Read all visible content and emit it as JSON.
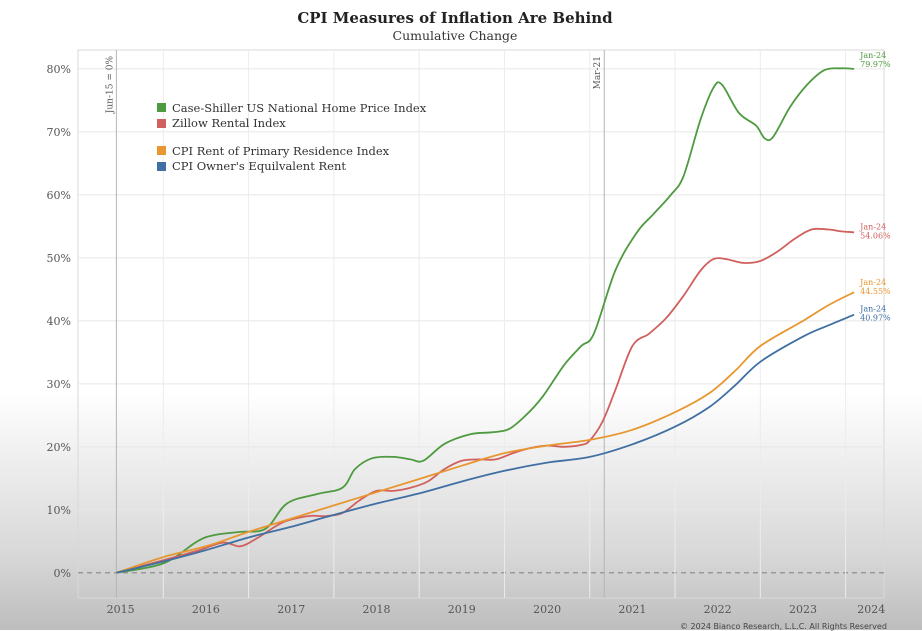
{
  "title": "CPI Measures of Inflation Are Behind",
  "subtitle": "Cumulative Change",
  "credit": "© 2024 Bianco Research, L.L.C. All Rights Reserved",
  "chart_data": {
    "type": "line",
    "title": "CPI Measures of Inflation Are Behind",
    "subtitle": "Cumulative Change",
    "xlabel": "",
    "ylabel": "",
    "x_ticks": [
      "2015",
      "2016",
      "2017",
      "2018",
      "2019",
      "2020",
      "2021",
      "2022",
      "2023",
      "2024"
    ],
    "y_ticks": [
      "0%",
      "10%",
      "20%",
      "30%",
      "40%",
      "50%",
      "60%",
      "70%",
      "80%"
    ],
    "xlim": [
      2015.0,
      2024.45
    ],
    "ylim": [
      -4,
      83
    ],
    "grid": "horizontal and vertical, light",
    "legend_position": "top-left",
    "reference_lines": [
      {
        "x": 2015.45,
        "label": "Jun-15 = 0%"
      },
      {
        "x": 2021.17,
        "label": "Mar-21"
      }
    ],
    "series": [
      {
        "name": "Case-Shiller US National Home Price Index",
        "color": "#4e9a3f",
        "end_label": "Jan-24",
        "end_value_label": "79.97%",
        "points": [
          [
            2015.45,
            0
          ],
          [
            2016.0,
            1.5
          ],
          [
            2016.4,
            5
          ],
          [
            2016.6,
            6
          ],
          [
            2016.9,
            6.5
          ],
          [
            2017.2,
            7
          ],
          [
            2017.45,
            11
          ],
          [
            2017.8,
            12.5
          ],
          [
            2018.1,
            13.5
          ],
          [
            2018.25,
            16.5
          ],
          [
            2018.45,
            18.2
          ],
          [
            2018.7,
            18.4
          ],
          [
            2018.9,
            18
          ],
          [
            2019.05,
            17.8
          ],
          [
            2019.3,
            20.5
          ],
          [
            2019.6,
            22
          ],
          [
            2019.85,
            22.3
          ],
          [
            2020.05,
            22.8
          ],
          [
            2020.25,
            25
          ],
          [
            2020.45,
            28
          ],
          [
            2020.7,
            33
          ],
          [
            2020.9,
            36
          ],
          [
            2021.05,
            38
          ],
          [
            2021.3,
            48
          ],
          [
            2021.55,
            54
          ],
          [
            2021.75,
            57
          ],
          [
            2021.95,
            60
          ],
          [
            2022.1,
            63
          ],
          [
            2022.3,
            72
          ],
          [
            2022.45,
            77
          ],
          [
            2022.55,
            77.5
          ],
          [
            2022.75,
            73
          ],
          [
            2022.95,
            71
          ],
          [
            2023.05,
            69
          ],
          [
            2023.15,
            69.2
          ],
          [
            2023.35,
            74
          ],
          [
            2023.55,
            77.5
          ],
          [
            2023.75,
            79.8
          ],
          [
            2023.95,
            80.1
          ],
          [
            2024.1,
            80.0
          ]
        ]
      },
      {
        "name": "Zillow Rental Index",
        "color": "#d0605e",
        "end_label": "Jan-24",
        "end_value_label": "54.06%",
        "points": [
          [
            2015.45,
            0
          ],
          [
            2016.0,
            2
          ],
          [
            2016.4,
            3.5
          ],
          [
            2016.7,
            4.8
          ],
          [
            2016.9,
            4.2
          ],
          [
            2017.1,
            5.5
          ],
          [
            2017.4,
            8
          ],
          [
            2017.7,
            9
          ],
          [
            2017.9,
            9
          ],
          [
            2018.1,
            9.5
          ],
          [
            2018.3,
            11.5
          ],
          [
            2018.5,
            13
          ],
          [
            2018.7,
            13
          ],
          [
            2018.9,
            13.5
          ],
          [
            2019.1,
            14.5
          ],
          [
            2019.3,
            16.5
          ],
          [
            2019.5,
            17.8
          ],
          [
            2019.7,
            18
          ],
          [
            2019.9,
            18
          ],
          [
            2020.1,
            19
          ],
          [
            2020.3,
            19.8
          ],
          [
            2020.5,
            20.2
          ],
          [
            2020.7,
            20
          ],
          [
            2020.9,
            20.3
          ],
          [
            2021.0,
            21
          ],
          [
            2021.15,
            24
          ],
          [
            2021.3,
            29
          ],
          [
            2021.5,
            36
          ],
          [
            2021.7,
            38
          ],
          [
            2021.9,
            40.5
          ],
          [
            2022.1,
            44
          ],
          [
            2022.3,
            48
          ],
          [
            2022.45,
            49.8
          ],
          [
            2022.6,
            49.8
          ],
          [
            2022.8,
            49.2
          ],
          [
            2023.0,
            49.5
          ],
          [
            2023.2,
            51
          ],
          [
            2023.4,
            53
          ],
          [
            2023.6,
            54.5
          ],
          [
            2023.8,
            54.5
          ],
          [
            2023.95,
            54.2
          ],
          [
            2024.1,
            54.06
          ]
        ]
      },
      {
        "name": "CPI Rent of Primary Residence Index",
        "color": "#e8962f",
        "end_label": "Jan-24",
        "end_value_label": "44.55%",
        "points": [
          [
            2015.45,
            0
          ],
          [
            2016.0,
            2.5
          ],
          [
            2016.5,
            4.2
          ],
          [
            2017.0,
            6.5
          ],
          [
            2017.5,
            8.6
          ],
          [
            2018.0,
            10.7
          ],
          [
            2018.5,
            12.8
          ],
          [
            2019.0,
            14.9
          ],
          [
            2019.5,
            17
          ],
          [
            2020.0,
            19
          ],
          [
            2020.5,
            20.2
          ],
          [
            2021.0,
            21.1
          ],
          [
            2021.5,
            22.7
          ],
          [
            2022.0,
            25.5
          ],
          [
            2022.4,
            28.5
          ],
          [
            2022.7,
            32
          ],
          [
            2023.0,
            36
          ],
          [
            2023.5,
            40
          ],
          [
            2023.8,
            42.5
          ],
          [
            2024.1,
            44.55
          ]
        ]
      },
      {
        "name": "CPI Owner's Equilvalent Rent",
        "color": "#3f6fa3",
        "end_label": "Jan-24",
        "end_value_label": "40.97%",
        "points": [
          [
            2015.45,
            0
          ],
          [
            2016.0,
            1.8
          ],
          [
            2016.5,
            3.6
          ],
          [
            2017.0,
            5.6
          ],
          [
            2017.5,
            7.3
          ],
          [
            2018.0,
            9.2
          ],
          [
            2018.5,
            11
          ],
          [
            2019.0,
            12.6
          ],
          [
            2019.5,
            14.5
          ],
          [
            2020.0,
            16.2
          ],
          [
            2020.5,
            17.5
          ],
          [
            2021.0,
            18.4
          ],
          [
            2021.5,
            20.4
          ],
          [
            2022.0,
            23.2
          ],
          [
            2022.4,
            26.3
          ],
          [
            2022.7,
            29.7
          ],
          [
            2023.0,
            33.5
          ],
          [
            2023.5,
            37.5
          ],
          [
            2023.8,
            39.3
          ],
          [
            2024.1,
            40.97
          ]
        ]
      }
    ]
  }
}
